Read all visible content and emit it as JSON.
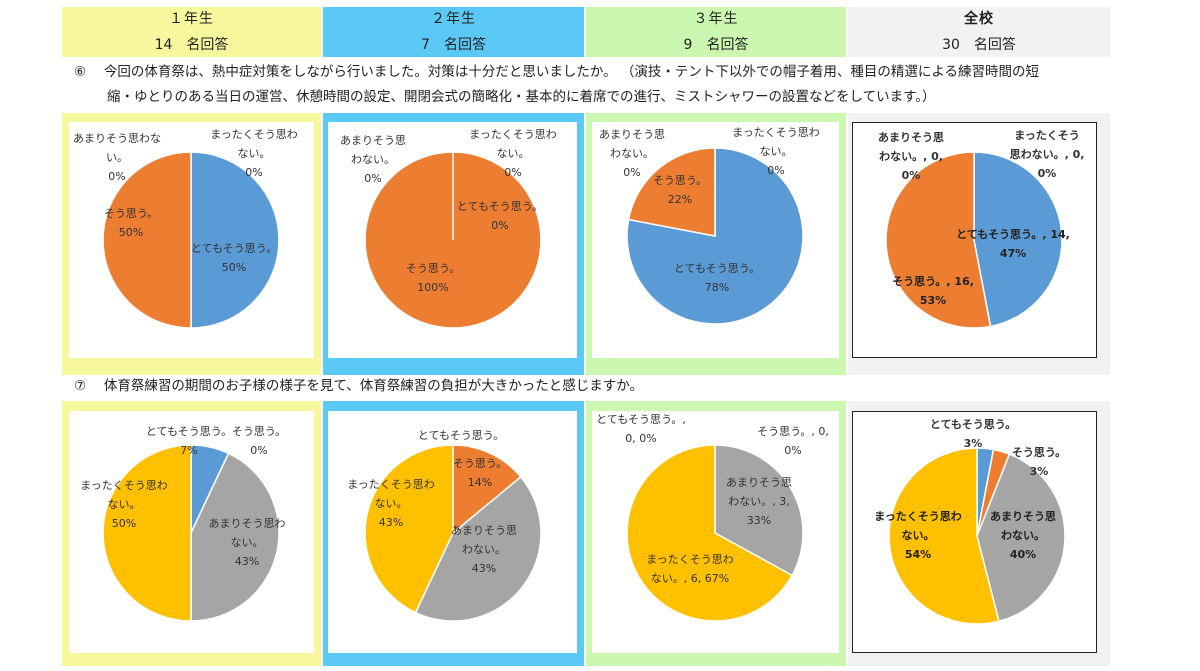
{
  "headers": [
    {
      "grade": "１年生",
      "count": "14　名回答",
      "color": "#f7f79e"
    },
    {
      "grade": "２年生",
      "count": "7　名回答",
      "color": "#5bc9f5"
    },
    {
      "grade": "３年生",
      "count": "9　名回答",
      "color": "#ccf7b0"
    },
    {
      "grade": "全校",
      "count": "30　名回答",
      "color": "#f2f2f2"
    }
  ],
  "question6": {
    "number": "⑥",
    "text_line1": "今回の体育祭は、熱中症対策をしながら行いました。対策は十分だと思いましたか。 （演技・テント下以外での帽子着用、種目の精選による練習時間の短",
    "text_line2": "縮・ゆとりのある当日の運営、休憩時間の設定、開閉会式の簡略化・基本的に着席での進行、ミストシャワーの設置などをしています。）"
  },
  "question7": {
    "number": "⑦",
    "text": "体育祭練習の期間のお子様の様子を見て、体育祭練習の負担が大きかったと感じますか。"
  },
  "colors": {
    "blue": "#5b9bd5",
    "orange": "#ed7d31",
    "gray": "#a5a5a5",
    "gold": "#ffc000"
  },
  "chart_data": [
    {
      "type": "pie",
      "grade": "１年生",
      "question": "⑥",
      "slices": [
        {
          "name": "とてもそう思う。",
          "value": 50,
          "color": "#5b9bd5",
          "label_lines": [
            "とてもそう思う。",
            "50%"
          ]
        },
        {
          "name": "そう思う。",
          "value": 50,
          "color": "#ed7d31",
          "label_lines": [
            "そう思う。",
            "50%"
          ]
        },
        {
          "name": "あまりそう思わない。",
          "value": 0,
          "color": "#a5a5a5",
          "label_lines": [
            "あまりそう思わな",
            "い。",
            "0%"
          ]
        },
        {
          "name": "まったくそう思わない。",
          "value": 0,
          "color": "#ffc000",
          "label_lines": [
            "まったくそう思わ",
            "ない。",
            "0%"
          ]
        }
      ]
    },
    {
      "type": "pie",
      "grade": "２年生",
      "question": "⑥",
      "slices": [
        {
          "name": "とてもそう思う。",
          "value": 0,
          "color": "#5b9bd5",
          "label_lines": [
            "とてもそう思う。",
            "0%"
          ]
        },
        {
          "name": "そう思う。",
          "value": 100,
          "color": "#ed7d31",
          "label_lines": [
            "そう思う。",
            "100%"
          ]
        },
        {
          "name": "あまりそう思わない。",
          "value": 0,
          "color": "#a5a5a5",
          "label_lines": [
            "あまりそう思",
            "わない。",
            "0%"
          ]
        },
        {
          "name": "まったくそう思わない。",
          "value": 0,
          "color": "#ffc000",
          "label_lines": [
            "まったくそう思わ",
            "ない。",
            "0%"
          ]
        }
      ]
    },
    {
      "type": "pie",
      "grade": "３年生",
      "question": "⑥",
      "slices": [
        {
          "name": "とてもそう思う。",
          "value": 78,
          "color": "#5b9bd5",
          "label_lines": [
            "とてもそう思う。",
            "78%"
          ]
        },
        {
          "name": "そう思う。",
          "value": 22,
          "color": "#ed7d31",
          "label_lines": [
            "そう思う。",
            "22%"
          ]
        },
        {
          "name": "あまりそう思わない。",
          "value": 0,
          "color": "#a5a5a5",
          "label_lines": [
            "あまりそう思",
            "わない。",
            "0%"
          ]
        },
        {
          "name": "まったくそう思わない。",
          "value": 0,
          "color": "#ffc000",
          "label_lines": [
            "まったくそう思わ",
            "ない。",
            "0%"
          ]
        }
      ]
    },
    {
      "type": "pie",
      "grade": "全校",
      "question": "⑥",
      "slices": [
        {
          "name": "とてもそう思う。",
          "value": 47,
          "count": 14,
          "color": "#5b9bd5",
          "label_lines": [
            "とてもそう思う。, 14,",
            "47%"
          ]
        },
        {
          "name": "そう思う。",
          "value": 53,
          "count": 16,
          "color": "#ed7d31",
          "label_lines": [
            "そう思う。, 16,",
            "53%"
          ]
        },
        {
          "name": "あまりそう思わない。",
          "value": 0,
          "count": 0,
          "color": "#a5a5a5",
          "label_lines": [
            "あまりそう思",
            "わない。, 0,",
            "0%"
          ]
        },
        {
          "name": "まったくそう思わない。",
          "value": 0,
          "count": 0,
          "color": "#ffc000",
          "label_lines": [
            "まったくそう",
            "思わない。, 0,",
            "0%"
          ]
        }
      ]
    },
    {
      "type": "pie",
      "grade": "１年生",
      "question": "⑦",
      "slices": [
        {
          "name": "とてもそう思う。",
          "value": 7,
          "color": "#5b9bd5",
          "label_lines": [
            "とてもそう思う。",
            "7%"
          ]
        },
        {
          "name": "そう思う。",
          "value": 0,
          "color": "#ed7d31",
          "label_lines": [
            "そう思う。",
            "0%"
          ]
        },
        {
          "name": "あまりそう思わない。",
          "value": 43,
          "color": "#a5a5a5",
          "label_lines": [
            "あまりそう思わ",
            "ない。",
            "43%"
          ]
        },
        {
          "name": "まったくそう思わない。",
          "value": 50,
          "color": "#ffc000",
          "label_lines": [
            "まったくそう思わ",
            "ない。",
            "50%"
          ]
        }
      ]
    },
    {
      "type": "pie",
      "grade": "２年生",
      "question": "⑦",
      "slices": [
        {
          "name": "とてもそう思う。",
          "value": 0,
          "color": "#5b9bd5",
          "label_lines": [
            "とてもそう思う。"
          ]
        },
        {
          "name": "そう思う。",
          "value": 14,
          "color": "#ed7d31",
          "label_lines": [
            "そう思う。",
            "14%"
          ]
        },
        {
          "name": "あまりそう思わない。",
          "value": 43,
          "color": "#a5a5a5",
          "label_lines": [
            "あまりそう思",
            "わない。",
            "43%"
          ]
        },
        {
          "name": "まったくそう思わない。",
          "value": 43,
          "color": "#ffc000",
          "label_lines": [
            "まったくそう思わ",
            "ない。",
            "43%"
          ]
        }
      ]
    },
    {
      "type": "pie",
      "grade": "３年生",
      "question": "⑦",
      "slices": [
        {
          "name": "とてもそう思う。",
          "value": 0,
          "count": 0,
          "color": "#5b9bd5",
          "label_lines": [
            "とてもそう思う。,",
            "0, 0%"
          ]
        },
        {
          "name": "そう思う。",
          "value": 0,
          "count": 0,
          "color": "#ed7d31",
          "label_lines": [
            "そう思う。, 0,",
            "0%"
          ]
        },
        {
          "name": "あまりそう思わない。",
          "value": 33,
          "count": 3,
          "color": "#a5a5a5",
          "label_lines": [
            "あまりそう思",
            "わない。, 3,",
            "33%"
          ]
        },
        {
          "name": "まったくそう思わない。",
          "value": 67,
          "count": 6,
          "color": "#ffc000",
          "label_lines": [
            "まったくそう思わ",
            "ない。, 6, 67%"
          ]
        }
      ]
    },
    {
      "type": "pie",
      "grade": "全校",
      "question": "⑦",
      "slices": [
        {
          "name": "とてもそう思う。",
          "value": 3,
          "color": "#5b9bd5",
          "label_lines": [
            "とてもそう思う。",
            "3%"
          ]
        },
        {
          "name": "そう思う。",
          "value": 3,
          "color": "#ed7d31",
          "label_lines": [
            "そう思う。",
            "3%"
          ]
        },
        {
          "name": "あまりそう思わない。",
          "value": 40,
          "color": "#a5a5a5",
          "label_lines": [
            "あまりそう思",
            "わない。",
            "40%"
          ]
        },
        {
          "name": "まったくそう思わない。",
          "value": 54,
          "color": "#ffc000",
          "label_lines": [
            "まったくそう思わ",
            "ない。",
            "54%"
          ]
        }
      ]
    }
  ]
}
